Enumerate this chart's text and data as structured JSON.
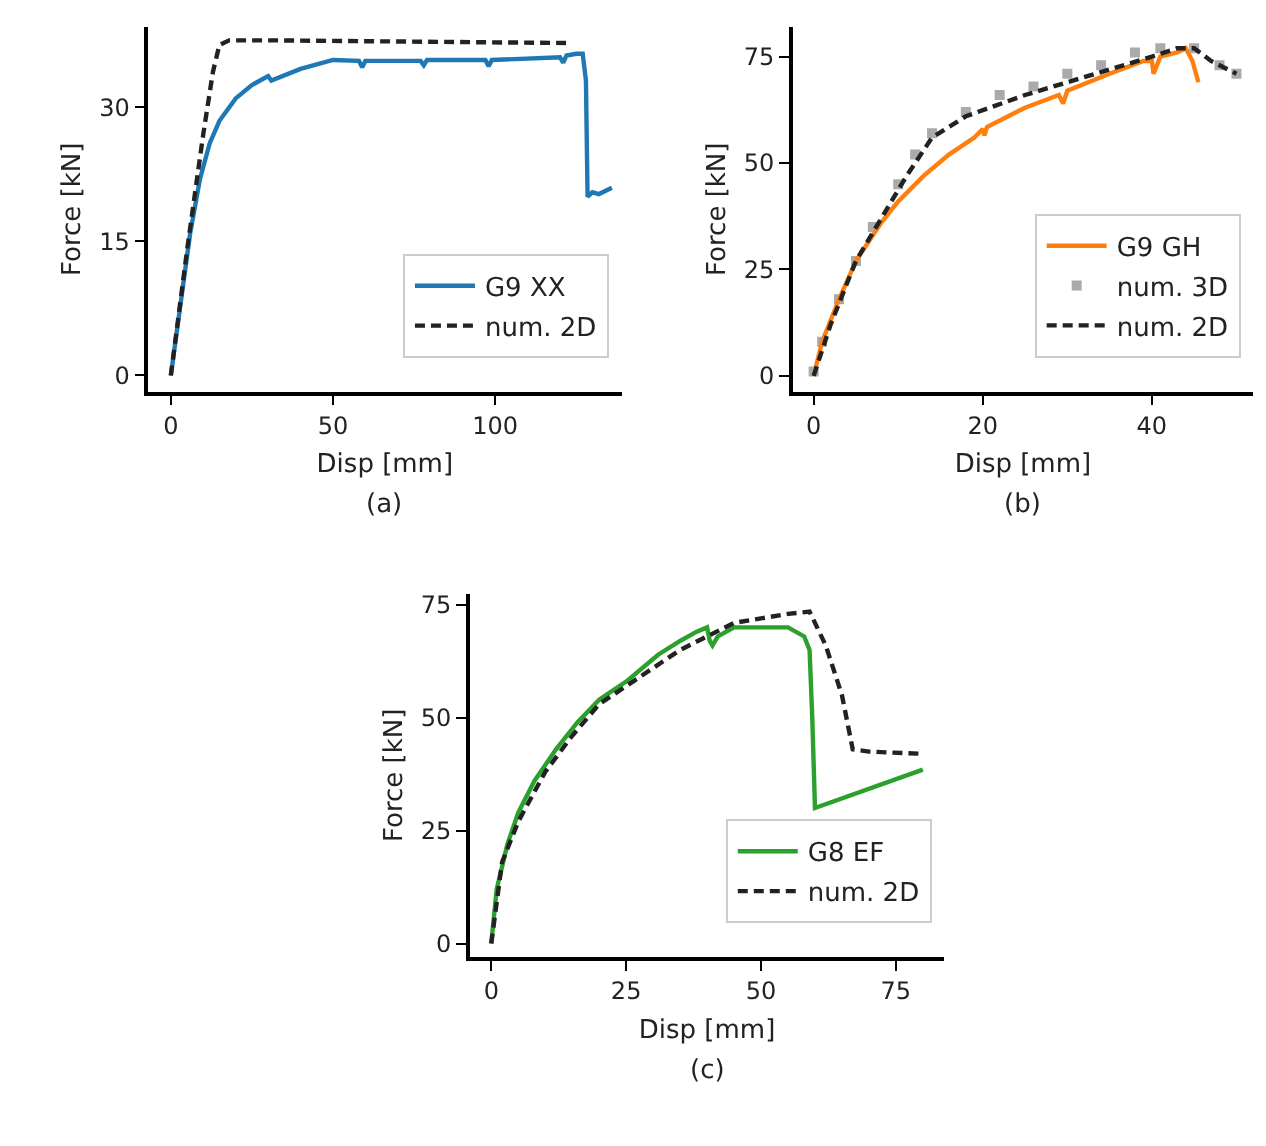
{
  "chart_data": [
    {
      "type": "line",
      "xlabel": "Disp [mm]",
      "ylabel": "Force [kN]",
      "annotations": [
        "(a)"
      ],
      "xlim": [
        -7,
        139
      ],
      "ylim": [
        -1.8,
        39
      ],
      "xticks": [
        0,
        50,
        100
      ],
      "yticks": [
        0,
        15,
        30
      ],
      "grid": false,
      "legend": "bottom right",
      "series": [
        {
          "name": "G9 XX",
          "color": "#1f77b4",
          "line_style": "solid",
          "x": [
            0,
            3,
            6,
            9,
            12,
            15,
            20,
            25,
            30,
            31,
            40,
            50,
            58,
            59,
            60,
            77,
            78,
            79,
            97,
            98,
            99,
            120,
            121,
            122,
            125,
            127,
            128,
            128.5,
            130,
            132,
            136
          ],
          "values": [
            0,
            8,
            16,
            22,
            26,
            28.5,
            31,
            32.5,
            33.5,
            33,
            34.3,
            35.3,
            35.2,
            34.5,
            35.2,
            35.2,
            34.7,
            35.3,
            35.3,
            34.6,
            35.3,
            35.6,
            35,
            35.8,
            36,
            36,
            33,
            20,
            20.5,
            20.3,
            21
          ]
        },
        {
          "name": "num. 2D",
          "color": "#222222",
          "line_style": "dashed",
          "x": [
            0,
            5,
            10,
            13,
            15,
            18,
            30,
            122
          ],
          "values": [
            0,
            14,
            27,
            34,
            37,
            37.5,
            37.5,
            37.2
          ]
        }
      ]
    },
    {
      "type": "line",
      "xlabel": "Disp [mm]",
      "ylabel": "Force [kN]",
      "annotations": [
        "(b)"
      ],
      "xlim": [
        -2.5,
        52
      ],
      "ylim": [
        -3.7,
        82
      ],
      "xticks": [
        0,
        20,
        40
      ],
      "yticks": [
        0,
        25,
        50,
        75
      ],
      "grid": false,
      "legend": "bottom right",
      "series": [
        {
          "name": "G9 GH",
          "color": "#ff7f0e",
          "line_style": "solid",
          "x": [
            0,
            1,
            3,
            5,
            8,
            10,
            13,
            16,
            19,
            20,
            20.2,
            20.5,
            25,
            29,
            29.5,
            30,
            35,
            39,
            40,
            40.2,
            41,
            43,
            44,
            44.8,
            45.5
          ],
          "values": [
            0,
            8,
            18,
            27,
            36,
            41,
            47,
            52,
            56,
            58,
            56.5,
            58.5,
            63,
            66,
            64,
            67,
            71,
            74,
            74,
            71,
            75,
            76,
            77,
            74,
            69
          ]
        },
        {
          "name": "num. 3D",
          "type": "scatter",
          "color": "#aaaaaa",
          "marker": "square",
          "x": [
            0,
            1,
            3,
            5,
            7,
            10,
            12,
            14,
            18,
            22,
            26,
            30,
            34,
            38,
            41,
            45,
            48,
            50
          ],
          "values": [
            1,
            8,
            18,
            27,
            35,
            45,
            52,
            57,
            62,
            66,
            68,
            71,
            73,
            76,
            77,
            77,
            73,
            71
          ]
        },
        {
          "name": "num. 2D",
          "color": "#222222",
          "line_style": "dashed",
          "x": [
            0,
            2,
            5,
            8,
            11,
            14,
            18,
            25,
            30,
            35,
            40,
            43,
            45,
            47,
            50
          ],
          "values": [
            0,
            12,
            27,
            37,
            47,
            56,
            61,
            66,
            69,
            72,
            75,
            77,
            77,
            74,
            71
          ]
        }
      ]
    },
    {
      "type": "line",
      "xlabel": "Disp [mm]",
      "ylabel": "Force [kN]",
      "annotations": [
        "(c)"
      ],
      "xlim": [
        -4,
        84
      ],
      "ylim": [
        -3,
        77.5
      ],
      "xticks": [
        0,
        25,
        50,
        75
      ],
      "yticks": [
        0,
        25,
        50,
        75
      ],
      "grid": false,
      "legend": "bottom right",
      "series": [
        {
          "name": "G8 EF",
          "color": "#2ca02c",
          "line_style": "solid",
          "x": [
            0,
            1,
            3,
            5,
            8,
            12,
            16,
            20,
            25,
            30,
            31,
            35,
            38,
            40,
            40.5,
            41,
            42,
            45,
            50,
            55,
            58,
            59,
            59.5,
            60,
            80
          ],
          "values": [
            0,
            12,
            22,
            29,
            36,
            43,
            49,
            54,
            58,
            63,
            64,
            67,
            69,
            70,
            67,
            66,
            68,
            70,
            70,
            70,
            68,
            65,
            50,
            30,
            38.5
          ]
        },
        {
          "name": "num. 2D",
          "color": "#222222",
          "line_style": "dashed",
          "x": [
            0,
            2,
            5,
            10,
            15,
            20,
            25,
            30,
            35,
            40,
            45,
            50,
            55,
            59,
            62,
            65,
            67,
            70,
            80
          ],
          "values": [
            0,
            18,
            27,
            38,
            46,
            53,
            57,
            61,
            65,
            68,
            71,
            72,
            73,
            73.5,
            66,
            55,
            43,
            42.5,
            42
          ]
        }
      ]
    }
  ]
}
